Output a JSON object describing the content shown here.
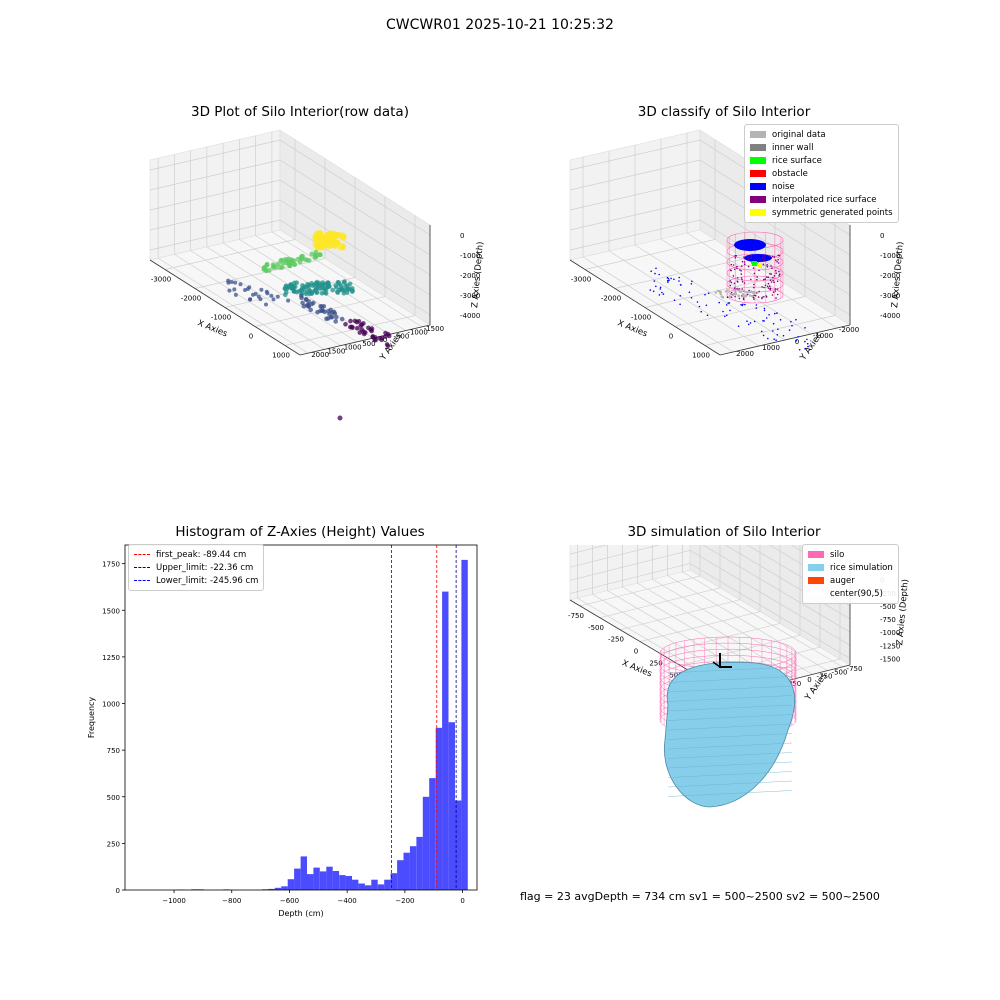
{
  "suptitle": "CWCWR01 2025-10-21 10:25:32",
  "footer": "flag = 23   avgDepth = 734 cm   sv1 = 500~2500   sv2 = 500~2500",
  "chart_data": [
    {
      "type": "scatter3d",
      "title": "3D Plot of Silo Interior(row data)",
      "xlabel": "X Axies",
      "ylabel": "Y Axies",
      "zlabel": "Z Axies (Depth)",
      "xticks": [
        "-3000",
        "-2000",
        "-1000",
        "0",
        "1000"
      ],
      "yticks": [
        "-1500",
        "-1000",
        "-500",
        "0",
        "500",
        "1000",
        "1500",
        "2000"
      ],
      "zticks": [
        "-4000",
        "-3000",
        "-2000",
        "-1000",
        "0"
      ],
      "colormap": [
        "#440154",
        "#3b528b",
        "#21918c",
        "#5ec962",
        "#fde725"
      ]
    },
    {
      "type": "scatter3d",
      "title": "3D classify of Silo Interior",
      "xlabel": "X Axies",
      "ylabel": "Y Axies",
      "zlabel": "Z Axies (Depth)",
      "xticks": [
        "-3000",
        "-2000",
        "-1000",
        "0",
        "1000"
      ],
      "yticks": [
        "-2000",
        "-1000",
        "0",
        "1000",
        "2000"
      ],
      "zticks": [
        "-4000",
        "-3000",
        "-2000",
        "-1000",
        "0"
      ],
      "legend": [
        {
          "name": "original data",
          "color": "#b3b3b3"
        },
        {
          "name": "inner wall",
          "color": "#808080"
        },
        {
          "name": "rice surface",
          "color": "#00ff00"
        },
        {
          "name": "obstacle",
          "color": "#ff0000"
        },
        {
          "name": "noise",
          "color": "#0000ff"
        },
        {
          "name": "interpolated rice surface",
          "color": "#800080"
        },
        {
          "name": "symmetric generated points",
          "color": "#ffff00"
        }
      ]
    },
    {
      "type": "bar",
      "title": "Histogram of Z-Axies (Height) Values",
      "xlabel": "Depth (cm)",
      "ylabel": "Frequency",
      "xlim": [
        -1170,
        50
      ],
      "ylim": [
        0,
        1850
      ],
      "xticks": [
        -1000,
        -800,
        -600,
        -400,
        -200,
        0
      ],
      "yticks": [
        0,
        250,
        500,
        750,
        1000,
        1250,
        1500,
        1750
      ],
      "bin_width": 22.3,
      "bin_left_edges": [
        -1119.0,
        -1096.7,
        -1074.4,
        -1052.1,
        -1029.8,
        -1007.5,
        -985.2,
        -962.9,
        -940.6,
        -918.3,
        -896.0,
        -873.7,
        -851.4,
        -829.1,
        -806.8,
        -784.5,
        -762.2,
        -739.9,
        -717.6,
        -695.3,
        -673.0,
        -650.7,
        -628.4,
        -606.1,
        -583.8,
        -561.5,
        -539.2,
        -516.9,
        -494.6,
        -472.3,
        -450.0,
        -427.7,
        -405.4,
        -383.1,
        -360.8,
        -338.5,
        -316.2,
        -293.9,
        -271.6,
        -249.3,
        -227.0,
        -204.7,
        -182.4,
        -160.1,
        -137.8,
        -115.5,
        -93.2,
        -70.9,
        -48.6,
        -26.3,
        -4.0
      ],
      "values": [
        0,
        0,
        0,
        0,
        0,
        0,
        2,
        0,
        4,
        4,
        0,
        0,
        0,
        3,
        0,
        0,
        0,
        0,
        0,
        4,
        6,
        12,
        20,
        58,
        115,
        180,
        85,
        120,
        100,
        125,
        102,
        80,
        75,
        55,
        35,
        25,
        55,
        30,
        55,
        90,
        160,
        200,
        235,
        285,
        500,
        600,
        870,
        1600,
        900,
        480,
        1770
      ],
      "bar_color": "#0000ff",
      "lines": [
        {
          "name": "first_peak: -89.44 cm",
          "x": -89.44,
          "color": "#ff0000"
        },
        {
          "name": "Upper_limit: -22.36 cm",
          "x": -22.36,
          "color": "#00008b"
        },
        {
          "name": "Lower_limit: -245.96 cm",
          "x": -245.96,
          "color": "#0000ff"
        }
      ]
    },
    {
      "type": "surface3d",
      "title": "3D simulation of Silo Interior",
      "xlabel": "X Axies",
      "ylabel": "Y Axies",
      "zlabel": "Z Axies (Depth)",
      "xticks": [
        "-750",
        "-500",
        "-250",
        "0",
        "250",
        "500",
        "750",
        "1000"
      ],
      "yticks": [
        "-750",
        "-500",
        "-250",
        "0",
        "250",
        "500",
        "750",
        "1000"
      ],
      "zticks": [
        "-1500",
        "-1250",
        "-1000",
        "-750",
        "-500",
        "-250",
        "0",
        "250"
      ],
      "legend": [
        {
          "name": "silo",
          "color": "#ff69b4"
        },
        {
          "name": "rice simulation",
          "color": "#87ceeb"
        },
        {
          "name": "auger",
          "color": "#ff4500"
        },
        {
          "name": "center(90,5)",
          "color": "#ffffff"
        }
      ]
    }
  ]
}
